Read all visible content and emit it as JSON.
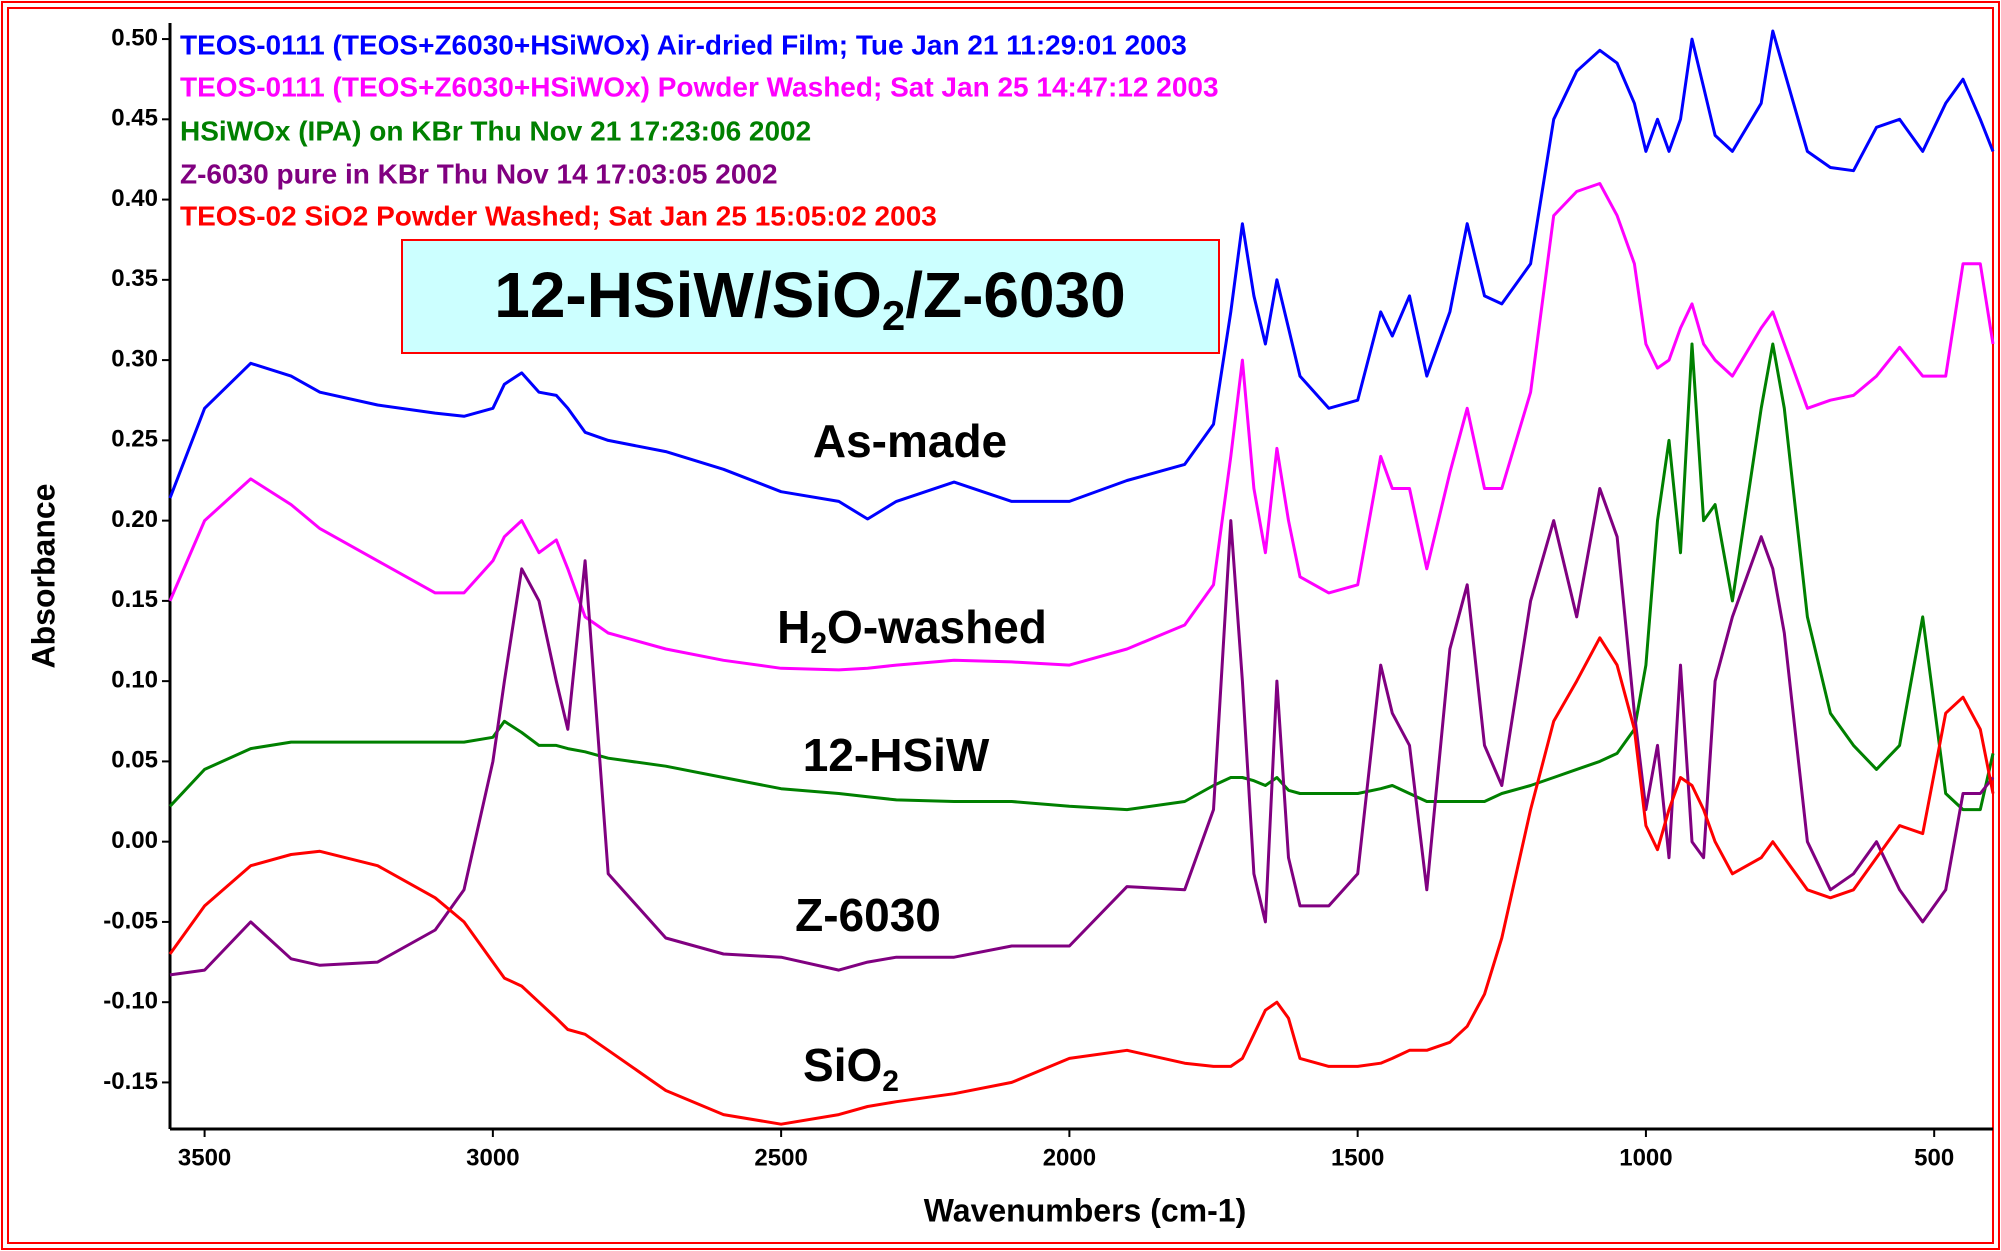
{
  "chart_data": {
    "type": "line",
    "xlabel": "Wavenumbers (cm-1)",
    "ylabel": "Absorbance",
    "xlim": [
      3560,
      398
    ],
    "ylim": [
      -0.179,
      0.51
    ],
    "xticks": [
      3500,
      3000,
      2500,
      2000,
      1500,
      1000,
      500
    ],
    "yticks": [
      {
        "value": 0.5,
        "label": "0.50"
      },
      0.45,
      {
        "value": 0.4,
        "label": "0.40"
      },
      0.35,
      {
        "value": 0.3,
        "label": "0.30"
      },
      0.25,
      {
        "value": 0.2,
        "label": "0.20"
      },
      0.15,
      {
        "value": 0.1,
        "label": "0.10"
      },
      0.05,
      {
        "value": 0,
        "label": "0.00"
      },
      -0.05,
      {
        "value": -0.1,
        "label": "-0.10"
      },
      -0.15
    ],
    "x": [
      3560,
      3500,
      3420,
      3350,
      3300,
      3200,
      3100,
      3050,
      3000,
      2980,
      2950,
      2920,
      2890,
      2870,
      2840,
      2800,
      2700,
      2600,
      2500,
      2400,
      2350,
      2300,
      2200,
      2100,
      2000,
      1900,
      1800,
      1750,
      1720,
      1700,
      1680,
      1660,
      1640,
      1620,
      1600,
      1550,
      1500,
      1460,
      1440,
      1410,
      1380,
      1340,
      1310,
      1280,
      1250,
      1200,
      1160,
      1120,
      1080,
      1050,
      1020,
      1000,
      980,
      960,
      940,
      920,
      900,
      880,
      850,
      800,
      780,
      760,
      720,
      680,
      640,
      600,
      560,
      520,
      480,
      450,
      420,
      398
    ],
    "series": [
      {
        "name": "TEOS-0111 (TEOS+Z6030+HSiWOx) Air-dried Film;  Tue Jan 21 11:29:01 2003",
        "color": "#0000ff",
        "values": [
          0.214,
          0.27,
          0.298,
          0.29,
          0.28,
          0.272,
          0.267,
          0.265,
          0.27,
          0.285,
          0.292,
          0.28,
          0.278,
          0.27,
          0.255,
          0.25,
          0.243,
          0.232,
          0.218,
          0.212,
          0.201,
          0.212,
          0.224,
          0.212,
          0.212,
          0.225,
          0.235,
          0.26,
          0.33,
          0.385,
          0.34,
          0.31,
          0.35,
          0.32,
          0.29,
          0.27,
          0.275,
          0.33,
          0.315,
          0.34,
          0.29,
          0.33,
          0.385,
          0.34,
          0.335,
          0.36,
          0.45,
          0.48,
          0.493,
          0.485,
          0.46,
          0.43,
          0.45,
          0.43,
          0.45,
          0.5,
          0.47,
          0.44,
          0.43,
          0.46,
          0.505,
          0.48,
          0.43,
          0.42,
          0.418,
          0.445,
          0.45,
          0.43,
          0.46,
          0.475,
          0.45,
          0.43
        ]
      },
      {
        "name": "TEOS-0111 (TEOS+Z6030+HSiWOx) Powder Washed;  Sat Jan 25 14:47:12 2003",
        "color": "#ff00ff",
        "values": [
          0.15,
          0.2,
          0.226,
          0.21,
          0.195,
          0.175,
          0.155,
          0.155,
          0.175,
          0.19,
          0.2,
          0.18,
          0.188,
          0.17,
          0.14,
          0.13,
          0.12,
          0.113,
          0.108,
          0.107,
          0.108,
          0.11,
          0.113,
          0.112,
          0.11,
          0.12,
          0.135,
          0.16,
          0.24,
          0.3,
          0.22,
          0.18,
          0.245,
          0.2,
          0.165,
          0.155,
          0.16,
          0.24,
          0.22,
          0.22,
          0.17,
          0.23,
          0.27,
          0.22,
          0.22,
          0.28,
          0.39,
          0.405,
          0.41,
          0.39,
          0.36,
          0.31,
          0.295,
          0.3,
          0.32,
          0.335,
          0.31,
          0.3,
          0.29,
          0.32,
          0.33,
          0.31,
          0.27,
          0.275,
          0.278,
          0.29,
          0.308,
          0.29,
          0.29,
          0.36,
          0.36,
          0.31
        ]
      },
      {
        "name": "HSiWOx (IPA) on KBr Thu Nov 21 17:23:06 2002",
        "color": "#008000",
        "values": [
          0.022,
          0.045,
          0.058,
          0.062,
          0.062,
          0.062,
          0.062,
          0.062,
          0.065,
          0.075,
          0.068,
          0.06,
          0.06,
          0.058,
          0.056,
          0.052,
          0.047,
          0.04,
          0.033,
          0.03,
          0.028,
          0.026,
          0.025,
          0.025,
          0.022,
          0.02,
          0.025,
          0.035,
          0.04,
          0.04,
          0.038,
          0.035,
          0.04,
          0.032,
          0.03,
          0.03,
          0.03,
          0.033,
          0.035,
          0.03,
          0.025,
          0.025,
          0.025,
          0.025,
          0.03,
          0.035,
          0.04,
          0.045,
          0.05,
          0.055,
          0.07,
          0.11,
          0.2,
          0.25,
          0.18,
          0.31,
          0.2,
          0.21,
          0.15,
          0.27,
          0.31,
          0.27,
          0.14,
          0.08,
          0.06,
          0.045,
          0.06,
          0.14,
          0.03,
          0.02,
          0.02,
          0.055
        ]
      },
      {
        "name": "Z-6030 pure in KBr Thu Nov 14 17:03:05 2002",
        "color": "#800080",
        "values": [
          -0.083,
          -0.08,
          -0.05,
          -0.073,
          -0.077,
          -0.075,
          -0.055,
          -0.03,
          0.05,
          0.1,
          0.17,
          0.15,
          0.1,
          0.07,
          0.175,
          -0.02,
          -0.06,
          -0.07,
          -0.072,
          -0.08,
          -0.075,
          -0.072,
          -0.072,
          -0.065,
          -0.065,
          -0.028,
          -0.03,
          0.02,
          0.2,
          0.1,
          -0.02,
          -0.05,
          0.1,
          -0.01,
          -0.04,
          -0.04,
          -0.02,
          0.11,
          0.08,
          0.06,
          -0.03,
          0.12,
          0.16,
          0.06,
          0.035,
          0.15,
          0.2,
          0.14,
          0.22,
          0.19,
          0.08,
          0.02,
          0.06,
          -0.01,
          0.11,
          0.0,
          -0.01,
          0.1,
          0.14,
          0.19,
          0.17,
          0.13,
          0.0,
          -0.03,
          -0.02,
          0.0,
          -0.03,
          -0.05,
          -0.03,
          0.03,
          0.03,
          0.04
        ]
      },
      {
        "name": "TEOS-02 SiO2 Powder Washed;  Sat Jan 25 15:05:02 2003",
        "color": "#ff0000",
        "values": [
          -0.07,
          -0.04,
          -0.015,
          -0.008,
          -0.006,
          -0.015,
          -0.035,
          -0.05,
          -0.075,
          -0.085,
          -0.09,
          -0.1,
          -0.11,
          -0.117,
          -0.12,
          -0.13,
          -0.155,
          -0.17,
          -0.176,
          -0.17,
          -0.165,
          -0.162,
          -0.157,
          -0.15,
          -0.135,
          -0.13,
          -0.138,
          -0.14,
          -0.14,
          -0.135,
          -0.12,
          -0.105,
          -0.1,
          -0.11,
          -0.135,
          -0.14,
          -0.14,
          -0.138,
          -0.135,
          -0.13,
          -0.13,
          -0.125,
          -0.115,
          -0.095,
          -0.06,
          0.02,
          0.075,
          0.1,
          0.127,
          0.11,
          0.07,
          0.01,
          -0.005,
          0.02,
          0.04,
          0.035,
          0.02,
          0.0,
          -0.02,
          -0.01,
          0.0,
          -0.01,
          -0.03,
          -0.035,
          -0.03,
          -0.01,
          0.01,
          0.005,
          0.08,
          0.09,
          0.07,
          0.03
        ]
      }
    ],
    "annotations": [
      {
        "text": [
          "12-HSiW/SiO",
          "2",
          "/Z-6030"
        ]
      },
      {
        "text": [
          "As-made"
        ]
      },
      {
        "text": [
          "H",
          "2",
          "O-washed"
        ]
      },
      {
        "text": [
          "12-HSiW"
        ]
      },
      {
        "text": [
          "Z-6030"
        ]
      },
      {
        "text": [
          "SiO",
          "2"
        ]
      }
    ]
  }
}
